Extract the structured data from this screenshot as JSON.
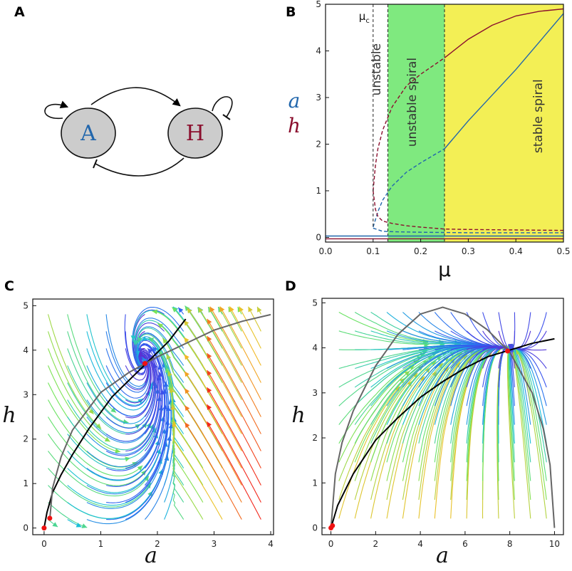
{
  "colors": {
    "a_blue": "#2166ac",
    "h_red": "#8b0f2e",
    "unstable_spiral_green": "#7fe97f",
    "stable_spiral_yellow": "#f3ef55",
    "node_fill": "#cccccc",
    "fixed_point_red": "#ee1111"
  },
  "panels": {
    "A": {
      "letter": "A",
      "nodes": [
        {
          "id": "A",
          "label": "A",
          "color": "#2166ac"
        },
        {
          "id": "H",
          "label": "H",
          "color": "#8b0f2e"
        }
      ],
      "edges": [
        {
          "from": "A",
          "to": "A",
          "kind": "activation"
        },
        {
          "from": "A",
          "to": "H",
          "kind": "activation"
        },
        {
          "from": "H",
          "to": "H",
          "kind": "inhibition"
        },
        {
          "from": "H",
          "to": "A",
          "kind": "inhibition"
        }
      ]
    },
    "B": {
      "letter": "B"
    },
    "C": {
      "letter": "C"
    },
    "D": {
      "letter": "D"
    }
  },
  "chart_data": [
    {
      "panel": "B",
      "type": "line",
      "title": "",
      "xlabel": "μ",
      "ylabel": "",
      "xlim": [
        0,
        0.5
      ],
      "ylim": [
        -0.1,
        5
      ],
      "x_ticks": [
        "0.0",
        "0.1",
        "0.2",
        "0.3",
        "0.4",
        "0.5"
      ],
      "y_ticks": [
        "0",
        "1",
        "2",
        "3",
        "4",
        "5"
      ],
      "legend": [
        {
          "name": "a",
          "color": "#2166ac"
        },
        {
          "name": "h",
          "color": "#8b0f2e"
        }
      ],
      "critical_label": "μ",
      "critical_subscript": "c",
      "critical_mu": 0.1,
      "regions": [
        {
          "label": "unstable",
          "from": 0.1,
          "to": 0.131,
          "color": "#ffffff"
        },
        {
          "label": "unstable spiral",
          "from": 0.131,
          "to": 0.25,
          "color": "#7fe97f"
        },
        {
          "label": "stable spiral",
          "from": 0.25,
          "to": 0.5,
          "color": "#f3ef55"
        }
      ],
      "series": [
        {
          "name": "a (upper branch, unstable)",
          "color": "#2166ac",
          "dash": "dashed",
          "x": [
            0.1,
            0.11,
            0.12,
            0.14,
            0.17,
            0.2,
            0.25
          ],
          "values": [
            0.22,
            0.55,
            0.8,
            1.1,
            1.4,
            1.6,
            1.9
          ]
        },
        {
          "name": "a (upper branch, stable)",
          "color": "#2166ac",
          "dash": "solid",
          "x": [
            0.25,
            0.3,
            0.35,
            0.4,
            0.45,
            0.5
          ],
          "values": [
            1.9,
            2.5,
            3.05,
            3.6,
            4.2,
            4.8
          ]
        },
        {
          "name": "a (middle branch, unstable)",
          "color": "#2166ac",
          "dash": "dashed",
          "x": [
            0.1,
            0.12,
            0.15,
            0.2,
            0.3,
            0.4,
            0.5
          ],
          "values": [
            0.2,
            0.13,
            0.12,
            0.11,
            0.1,
            0.1,
            0.1
          ]
        },
        {
          "name": "a (trivial, stable)",
          "color": "#2166ac",
          "dash": "solid",
          "x": [
            0.0,
            0.5
          ],
          "values": [
            0.03,
            0.03
          ]
        },
        {
          "name": "h (upper branch, unstable)",
          "color": "#8b0f2e",
          "dash": "dashed",
          "x": [
            0.1,
            0.105,
            0.11,
            0.12,
            0.14,
            0.17,
            0.2,
            0.25
          ],
          "values": [
            1.0,
            1.55,
            1.9,
            2.3,
            2.8,
            3.25,
            3.5,
            3.85
          ]
        },
        {
          "name": "h (upper branch, stable)",
          "color": "#8b0f2e",
          "dash": "solid",
          "x": [
            0.25,
            0.3,
            0.35,
            0.4,
            0.45,
            0.5
          ],
          "values": [
            3.85,
            4.25,
            4.55,
            4.75,
            4.85,
            4.9
          ]
        },
        {
          "name": "h (lower branch, unstable)",
          "color": "#8b0f2e",
          "dash": "dashed",
          "x": [
            0.1,
            0.105,
            0.11,
            0.12,
            0.14,
            0.17,
            0.2,
            0.25,
            0.3,
            0.4,
            0.5
          ],
          "values": [
            1.0,
            0.6,
            0.45,
            0.35,
            0.3,
            0.25,
            0.22,
            0.18,
            0.17,
            0.16,
            0.15
          ]
        },
        {
          "name": "h (trivial, stable)",
          "color": "#8b0f2e",
          "dash": "solid",
          "x": [
            0.0,
            0.5
          ],
          "values": [
            -0.03,
            -0.03
          ]
        }
      ]
    },
    {
      "panel": "C",
      "type": "line",
      "title": "",
      "xlabel": "a",
      "ylabel": "h",
      "xlim": [
        -0.2,
        4.05
      ],
      "ylim": [
        -0.15,
        5.15
      ],
      "x_ticks": [
        "0",
        "1",
        "2",
        "3",
        "4"
      ],
      "y_ticks": [
        "0",
        "1",
        "2",
        "3",
        "4",
        "5"
      ],
      "streamplot_colormap": "rainbow",
      "nullclines": [
        {
          "name": "a-nullcline",
          "color": "#000000",
          "x": [
            0.0,
            0.05,
            0.15,
            0.3,
            0.5,
            0.8,
            1.2,
            1.6,
            1.8,
            2.0,
            2.2,
            2.5
          ],
          "values": [
            0.0,
            0.35,
            0.8,
            1.2,
            1.65,
            2.25,
            2.95,
            3.45,
            3.7,
            3.95,
            4.2,
            4.7
          ]
        },
        {
          "name": "h-nullcline",
          "color": "#666666",
          "x": [
            0.1,
            0.15,
            0.3,
            0.5,
            1.0,
            1.5,
            2.0,
            2.5,
            3.0,
            3.5,
            4.0
          ],
          "values": [
            0.2,
            0.9,
            1.6,
            2.2,
            3.05,
            3.5,
            3.85,
            4.15,
            4.45,
            4.65,
            4.8
          ]
        }
      ],
      "fixed_points": [
        {
          "x": 0.0,
          "y": 0.0
        },
        {
          "x": 0.1,
          "y": 0.22
        },
        {
          "x": 1.78,
          "y": 3.7
        }
      ]
    },
    {
      "panel": "D",
      "type": "line",
      "title": "",
      "xlabel": "a",
      "ylabel": "h",
      "xlim": [
        -0.4,
        10.4
      ],
      "ylim": [
        -0.15,
        5.1
      ],
      "x_ticks": [
        "0",
        "2",
        "4",
        "6",
        "8",
        "10"
      ],
      "y_ticks": [
        "0",
        "1",
        "2",
        "3",
        "4",
        "5"
      ],
      "streamplot_colormap": "rainbow",
      "nullclines": [
        {
          "name": "h-nullcline (arch)",
          "color": "#666666",
          "x": [
            0.0,
            0.2,
            0.5,
            1.0,
            2.0,
            3.0,
            4.0,
            5.0,
            6.0,
            7.0,
            8.0,
            9.0,
            9.5,
            9.8,
            10.0
          ],
          "values": [
            0.0,
            1.2,
            1.9,
            2.6,
            3.6,
            4.3,
            4.75,
            4.9,
            4.75,
            4.4,
            3.9,
            3.0,
            2.2,
            1.4,
            0.0
          ]
        },
        {
          "name": "a-nullcline",
          "color": "#000000",
          "x": [
            0.0,
            0.3,
            0.7,
            1.0,
            2.0,
            3.0,
            4.0,
            5.0,
            6.0,
            7.0,
            8.0,
            9.0,
            10.0
          ],
          "values": [
            0.0,
            0.5,
            0.9,
            1.2,
            1.95,
            2.45,
            2.9,
            3.25,
            3.55,
            3.8,
            3.95,
            4.1,
            4.2
          ]
        }
      ],
      "fixed_points": [
        {
          "x": 0.0,
          "y": 0.0
        },
        {
          "x": 0.07,
          "y": 0.05
        },
        {
          "x": 7.9,
          "y": 3.93
        }
      ]
    }
  ]
}
